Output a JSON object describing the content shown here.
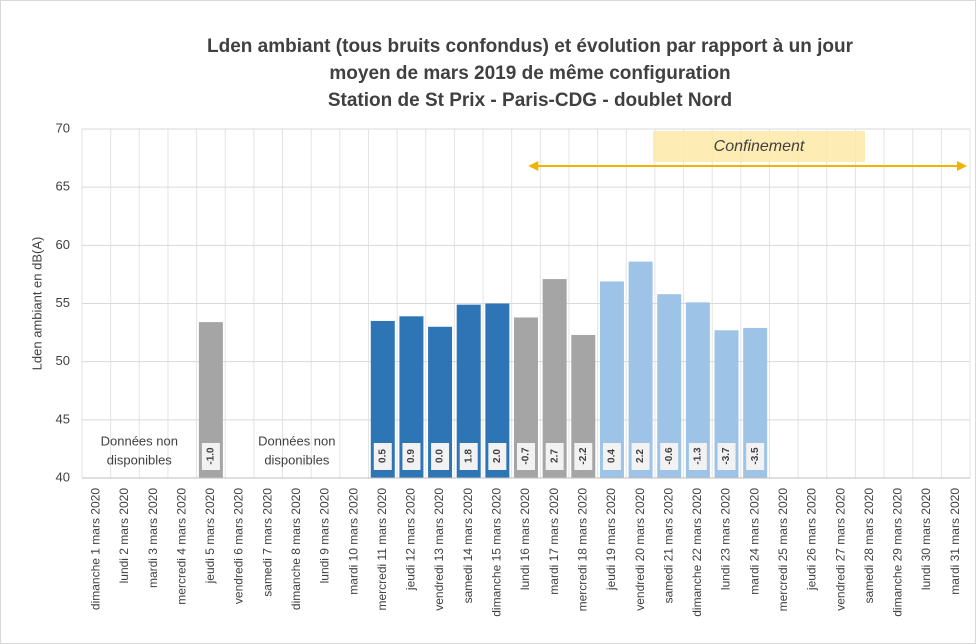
{
  "chart_data": {
    "type": "bar",
    "title": [
      "Lden ambiant (tous bruits confondus) et évolution par rapport à un jour",
      "moyen de mars 2019 de même configuration",
      "Station de St Prix - Paris-CDG - doublet Nord"
    ],
    "y_label": "Lden ambiant en dB(A)",
    "categories": [
      "dimanche 1 mars 2020",
      "lundi 2 mars 2020",
      "mardi 3 mars 2020",
      "mercredi 4 mars 2020",
      "jeudi 5 mars 2020",
      "vendredi 6 mars 2020",
      "samedi 7 mars 2020",
      "dimanche 8 mars 2020",
      "lundi 9 mars 2020",
      "mardi 10 mars 2020",
      "mercredi 11 mars 2020",
      "jeudi 12 mars 2020",
      "vendredi 13 mars 2020",
      "samedi 14 mars 2020",
      "dimanche 15 mars 2020",
      "lundi 16 mars 2020",
      "mardi 17 mars 2020",
      "mercredi 18 mars 2020",
      "jeudi 19 mars 2020",
      "vendredi 20 mars 2020",
      "samedi 21 mars 2020",
      "dimanche 22 mars 2020",
      "lundi 23 mars 2020",
      "mardi 24 mars 2020",
      "mercredi 25 mars 2020",
      "jeudi 26 mars 2020",
      "vendredi 27 mars 2020",
      "samedi 28 mars 2020",
      "dimanche 29 mars 2020",
      "lundi 30 mars 2020",
      "mardi 31 mars 2020"
    ],
    "values": [
      null,
      null,
      null,
      null,
      53.4,
      null,
      null,
      null,
      null,
      null,
      53.5,
      53.9,
      53.0,
      54.9,
      55.0,
      53.8,
      57.1,
      52.3,
      56.9,
      58.6,
      55.8,
      55.1,
      52.7,
      52.9,
      null,
      null,
      null,
      null,
      null,
      null,
      null
    ],
    "colors": [
      null,
      null,
      null,
      null,
      "#a5a5a5",
      null,
      null,
      null,
      null,
      null,
      "#2e75b6",
      "#2e75b6",
      "#2e75b6",
      "#2e75b6",
      "#2e75b6",
      "#a5a5a5",
      "#a5a5a5",
      "#a5a5a5",
      "#9dc3e6",
      "#9dc3e6",
      "#9dc3e6",
      "#9dc3e6",
      "#9dc3e6",
      "#9dc3e6",
      null,
      null,
      null,
      null,
      null,
      null,
      null
    ],
    "evolution_labels": [
      null,
      null,
      null,
      null,
      "-1.0",
      null,
      null,
      null,
      null,
      null,
      "0.5",
      "0.9",
      "0.0",
      "1.8",
      "2.0",
      "-0.7",
      "2.7",
      "-2.2",
      "0.4",
      "2.2",
      "-0.6",
      "-1.3",
      "-3.7",
      "-3.5",
      null,
      null,
      null,
      null,
      null,
      null,
      null
    ],
    "no_data_notes": [
      [
        "Données non",
        "disponibles"
      ],
      [
        "Données non",
        "disponibles"
      ]
    ],
    "period_label": "Confinement",
    "ylim": [
      40,
      70
    ],
    "yticks": [
      40,
      45,
      50,
      55,
      60,
      65,
      70
    ],
    "grid": true
  }
}
